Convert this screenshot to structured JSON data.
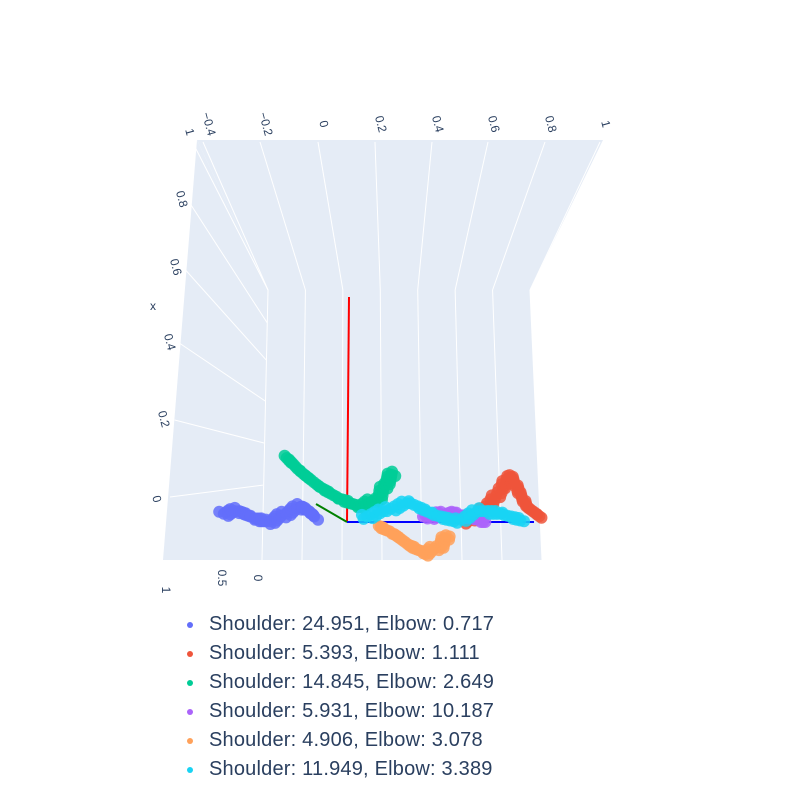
{
  "chart_data": {
    "type": "scatter",
    "title": "",
    "scene": "3d",
    "axes": {
      "x_label": "x",
      "x_ticks": [
        "0",
        "0.2",
        "0.4",
        "0.6",
        "0.8",
        "1"
      ],
      "top_ticks": [
        "−0.4",
        "−0.2",
        "0",
        "0.2",
        "0.4",
        "0.6",
        "0.8",
        "1"
      ],
      "depth_ticks": [
        "1",
        "0.5",
        "0"
      ]
    },
    "reference_axes": [
      {
        "name": "x-axis-line",
        "color": "#ff0000"
      },
      {
        "name": "y-axis-line",
        "color": "#0000ff"
      },
      {
        "name": "z-axis-line",
        "color": "#008000"
      }
    ],
    "series": [
      {
        "name": "Shoulder: 24.951, Elbow: 0.717",
        "color": "#636efa",
        "x": [
          0.02,
          0.03,
          0.01,
          0.0,
          0.02,
          0.04,
          0.03,
          0.01
        ],
        "y": [
          -0.32,
          -0.28,
          -0.24,
          -0.2,
          -0.16,
          -0.12,
          -0.1,
          -0.08
        ]
      },
      {
        "name": "Shoulder: 5.393, Elbow: 1.111",
        "color": "#EF553B",
        "x": [
          0.0,
          0.02,
          0.05,
          0.09,
          0.12,
          0.08,
          0.04,
          0.01
        ],
        "y": [
          0.3,
          0.34,
          0.37,
          0.4,
          0.42,
          0.44,
          0.46,
          0.5
        ]
      },
      {
        "name": "Shoulder: 14.845, Elbow: 2.649",
        "color": "#00cc96",
        "x": [
          0.17,
          0.13,
          0.09,
          0.06,
          0.04,
          0.06,
          0.1,
          0.13
        ],
        "y": [
          -0.16,
          -0.12,
          -0.07,
          -0.02,
          0.03,
          0.08,
          0.1,
          0.12
        ]
      },
      {
        "name": "Shoulder: 5.931, Elbow: 10.187",
        "color": "#ab63fa",
        "x": [
          0.01,
          0.02,
          0.02,
          0.01,
          0.0
        ],
        "y": [
          0.2,
          0.24,
          0.28,
          0.32,
          0.36
        ]
      },
      {
        "name": "Shoulder: 4.906, Elbow: 3.078",
        "color": "#FFA15A",
        "x": [
          -0.01,
          -0.03,
          -0.06,
          -0.08,
          -0.06,
          -0.03
        ],
        "y": [
          0.08,
          0.12,
          0.16,
          0.2,
          0.24,
          0.26
        ]
      },
      {
        "name": "Shoulder: 11.949, Elbow: 3.389",
        "color": "#19d3f3",
        "x": [
          0.01,
          0.03,
          0.05,
          0.02,
          0.0,
          0.03,
          0.02,
          0.0
        ],
        "y": [
          0.04,
          0.1,
          0.16,
          0.22,
          0.28,
          0.34,
          0.4,
          0.46
        ]
      }
    ]
  }
}
